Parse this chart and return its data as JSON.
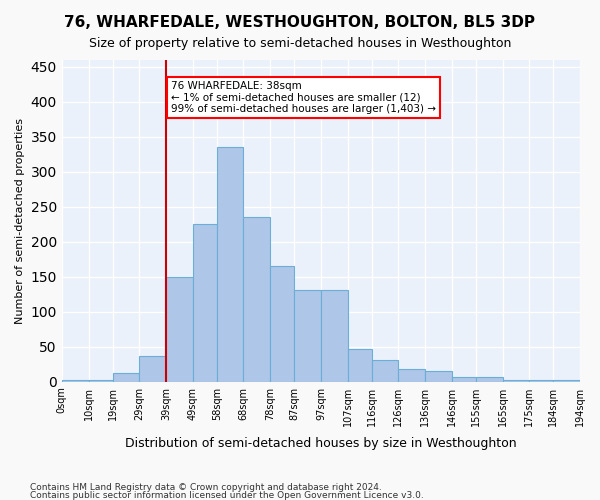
{
  "title": "76, WHARFEDALE, WESTHOUGHTON, BOLTON, BL5 3DP",
  "subtitle": "Size of property relative to semi-detached houses in Westhoughton",
  "xlabel": "Distribution of semi-detached houses by size in Westhoughton",
  "ylabel": "Number of semi-detached properties",
  "footnote1": "Contains HM Land Registry data © Crown copyright and database right 2024.",
  "footnote2": "Contains public sector information licensed under the Open Government Licence v3.0.",
  "annotation_title": "76 WHARFEDALE: 38sqm",
  "annotation_line1": "← 1% of semi-detached houses are smaller (12)",
  "annotation_line2": "99% of semi-detached houses are larger (1,403) →",
  "property_size": 38,
  "bin_edges": [
    0,
    10,
    19,
    29,
    39,
    49,
    58,
    68,
    78,
    87,
    97,
    107,
    116,
    126,
    136,
    146,
    155,
    165,
    175,
    184,
    194
  ],
  "bar_heights": [
    2,
    2,
    12,
    36,
    150,
    226,
    336,
    236,
    165,
    131,
    131,
    47,
    31,
    18,
    15,
    6,
    7,
    3,
    2,
    2
  ],
  "bar_color": "#aec6e8",
  "bar_edge_color": "#6baed6",
  "vline_color": "#cc0000",
  "vline_x": 39,
  "ylim": [
    0,
    460
  ],
  "yticks": [
    0,
    50,
    100,
    150,
    200,
    250,
    300,
    350,
    400,
    450
  ],
  "tick_labels": [
    "0sqm",
    "10sqm",
    "19sqm",
    "29sqm",
    "39sqm",
    "49sqm",
    "58sqm",
    "68sqm",
    "78sqm",
    "87sqm",
    "97sqm",
    "107sqm",
    "116sqm",
    "126sqm",
    "136sqm",
    "146sqm",
    "155sqm",
    "165sqm",
    "175sqm",
    "184sqm",
    "194sqm"
  ],
  "bg_color": "#eaf1fb",
  "grid_color": "#ffffff"
}
